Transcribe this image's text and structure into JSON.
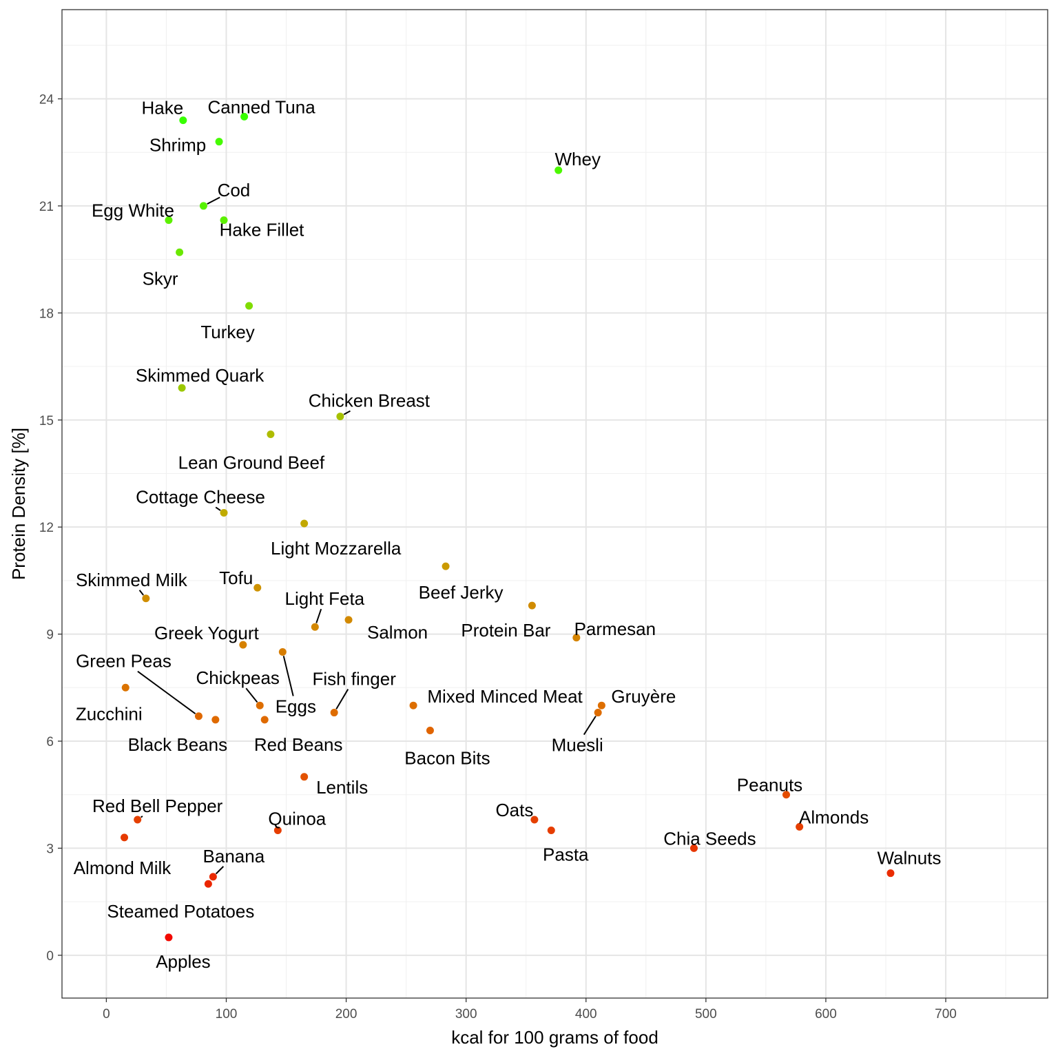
{
  "chart_data": {
    "type": "scatter",
    "title": "",
    "xlabel": "kcal for 100 grams of food",
    "ylabel": "Protein Density [%]",
    "xlim": [
      -37,
      785
    ],
    "ylim": [
      -1.2,
      26.5
    ],
    "x_ticks": [
      0,
      100,
      200,
      300,
      400,
      500,
      600,
      700
    ],
    "y_ticks": [
      0,
      3,
      6,
      9,
      12,
      15,
      18,
      21,
      24
    ],
    "grid": true,
    "legend": "none",
    "color_scale": {
      "low": "#ff0000",
      "high": "#33ff00"
    },
    "points": [
      {
        "label": "Hake",
        "x": 64,
        "y": 23.4,
        "color": "#38ff00",
        "label_dx": -30,
        "label_dy": -18
      },
      {
        "label": "Canned Tuna",
        "x": 115,
        "y": 23.5,
        "color": "#38ff00",
        "label_dx": 25,
        "label_dy": -14
      },
      {
        "label": "Shrimp",
        "x": 94,
        "y": 22.8,
        "color": "#45fb00",
        "label_dx": -60,
        "label_dy": 5
      },
      {
        "label": "Whey",
        "x": 377,
        "y": 22.0,
        "color": "#4cf800",
        "label_dx": 28,
        "label_dy": -16
      },
      {
        "label": "Cod",
        "x": 81,
        "y": 21.0,
        "color": "#56f200",
        "label_dx": 44,
        "label_dy": -23,
        "leader": true
      },
      {
        "label": "Egg White",
        "x": 52,
        "y": 20.6,
        "color": "#5cf000",
        "label_dx": -52,
        "label_dy": -14
      },
      {
        "label": "Hake Fillet",
        "x": 98,
        "y": 20.6,
        "color": "#5cf000",
        "label_dx": 55,
        "label_dy": 14
      },
      {
        "label": "Skyr",
        "x": 61,
        "y": 19.7,
        "color": "#6ae800",
        "label_dx": -28,
        "label_dy": 38
      },
      {
        "label": "Turkey",
        "x": 119,
        "y": 18.2,
        "color": "#80dc00",
        "label_dx": -31,
        "label_dy": 38
      },
      {
        "label": "Skimmed Quark",
        "x": 63,
        "y": 15.9,
        "color": "#9bc800",
        "label_dx": 26,
        "label_dy": -18
      },
      {
        "label": "Chicken Breast",
        "x": 195,
        "y": 15.1,
        "color": "#a6c100",
        "label_dx": 42,
        "label_dy": -23,
        "leader": true
      },
      {
        "label": "Lean Ground Beef",
        "x": 137,
        "y": 14.6,
        "color": "#aebc00",
        "label_dx": -28,
        "label_dy": 41
      },
      {
        "label": "Cottage Cheese",
        "x": 98,
        "y": 12.4,
        "color": "#c0ab00",
        "label_dx": -34,
        "label_dy": -23,
        "leader": true
      },
      {
        "label": "Light Mozzarella",
        "x": 165,
        "y": 12.1,
        "color": "#c2a800",
        "label_dx": 46,
        "label_dy": 36
      },
      {
        "label": "Beef Jerky",
        "x": 283,
        "y": 10.9,
        "color": "#cb9a00",
        "label_dx": 22,
        "label_dy": 38
      },
      {
        "label": "Skimmed Milk",
        "x": 33,
        "y": 10.0,
        "color": "#d08e00",
        "label_dx": -21,
        "label_dy": -27,
        "leader": true
      },
      {
        "label": "Tofu",
        "x": 126,
        "y": 10.3,
        "color": "#ce9200",
        "label_dx": -31,
        "label_dy": -14
      },
      {
        "label": "Light Feta",
        "x": 174,
        "y": 9.2,
        "color": "#d38700",
        "label_dx": 14,
        "label_dy": -41,
        "leader": true
      },
      {
        "label": "Salmon",
        "x": 202,
        "y": 9.4,
        "color": "#d28900",
        "label_dx": 71,
        "label_dy": 18
      },
      {
        "label": "Protein Bar",
        "x": 355,
        "y": 9.8,
        "color": "#d08b00",
        "label_dx": -38,
        "label_dy": 36
      },
      {
        "label": "Parmesan",
        "x": 392,
        "y": 8.9,
        "color": "#d58400",
        "label_dx": 56,
        "label_dy": -13
      },
      {
        "label": "Greek Yogurt",
        "x": 114,
        "y": 8.7,
        "color": "#d68100",
        "label_dx": -53,
        "label_dy": -17
      },
      {
        "label": "Eggs",
        "x": 147,
        "y": 8.5,
        "color": "#d77d00",
        "label_dx": 19,
        "label_dy": 79,
        "leader": true
      },
      {
        "label": "Green Peas",
        "x": 77,
        "y": 6.7,
        "color": "#df6800",
        "label_dx": -109,
        "label_dy": -80,
        "leader": true
      },
      {
        "label": "Zucchini",
        "x": 16,
        "y": 7.5,
        "color": "#db7300",
        "label_dx": -24,
        "label_dy": 38
      },
      {
        "label": "Chickpeas",
        "x": 128,
        "y": 7.0,
        "color": "#dd6d00",
        "label_dx": -32,
        "label_dy": -40,
        "leader": true
      },
      {
        "label": "Black Beans",
        "x": 91,
        "y": 6.6,
        "color": "#df6a00",
        "label_dx": -55,
        "label_dy": 36
      },
      {
        "label": "Red Beans",
        "x": 132,
        "y": 6.6,
        "color": "#df6a00",
        "label_dx": 49,
        "label_dy": 36
      },
      {
        "label": "Fish finger",
        "x": 190,
        "y": 6.8,
        "color": "#de6c00",
        "label_dx": 29,
        "label_dy": -49,
        "leader": true
      },
      {
        "label": "Mixed Minced Meat",
        "x": 256,
        "y": 7.0,
        "color": "#dd6e00",
        "label_dx": 133,
        "label_dy": -13
      },
      {
        "label": "Bacon Bits",
        "x": 270,
        "y": 6.3,
        "color": "#e06400",
        "label_dx": 25,
        "label_dy": 40
      },
      {
        "label": "Gruyère",
        "x": 413,
        "y": 7.0,
        "color": "#dd6e00",
        "label_dx": 61,
        "label_dy": -13
      },
      {
        "label": "Muesli",
        "x": 410,
        "y": 6.8,
        "color": "#de6c00",
        "label_dx": -30,
        "label_dy": 47,
        "leader": true
      },
      {
        "label": "Lentils",
        "x": 165,
        "y": 5.0,
        "color": "#e35200",
        "label_dx": 55,
        "label_dy": 15
      },
      {
        "label": "Peanuts",
        "x": 567,
        "y": 4.5,
        "color": "#e44c00",
        "label_dx": -24,
        "label_dy": -14
      },
      {
        "label": "Red Bell Pepper",
        "x": 26,
        "y": 3.8,
        "color": "#e54000",
        "label_dx": 29,
        "label_dy": -20,
        "leader": true
      },
      {
        "label": "Quinoa",
        "x": 143,
        "y": 3.5,
        "color": "#e63d00",
        "label_dx": 28,
        "label_dy": -17
      },
      {
        "label": "Oats",
        "x": 357,
        "y": 3.8,
        "color": "#e54000",
        "label_dx": -29,
        "label_dy": -14
      },
      {
        "label": "Almonds",
        "x": 578,
        "y": 3.6,
        "color": "#e53e00",
        "label_dx": 50,
        "label_dy": -14
      },
      {
        "label": "Pasta",
        "x": 371,
        "y": 3.5,
        "color": "#e63d00",
        "label_dx": 21,
        "label_dy": 35
      },
      {
        "label": "Chia Seeds",
        "x": 490,
        "y": 3.0,
        "color": "#e73600",
        "label_dx": 23,
        "label_dy": -14
      },
      {
        "label": "Almond Milk",
        "x": 15,
        "y": 3.3,
        "color": "#e63a00",
        "label_dx": -3,
        "label_dy": 44
      },
      {
        "label": "Walnuts",
        "x": 654,
        "y": 2.3,
        "color": "#ea2c00",
        "label_dx": 27,
        "label_dy": -22
      },
      {
        "label": "Banana",
        "x": 89,
        "y": 2.2,
        "color": "#ea2a00",
        "label_dx": 30,
        "label_dy": -30,
        "leader": true
      },
      {
        "label": "Steamed Potatoes",
        "x": 85,
        "y": 2.0,
        "color": "#eb2600",
        "label_dx": -40,
        "label_dy": 40
      },
      {
        "label": "Apples",
        "x": 52,
        "y": 0.5,
        "color": "#f20900",
        "label_dx": 21,
        "label_dy": 35
      }
    ]
  }
}
